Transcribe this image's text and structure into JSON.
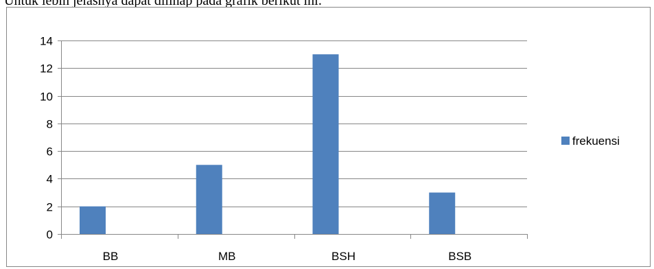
{
  "intro_text": "Untuk lebih jelasnya dapat dilihap pada grafik berikut ini:",
  "chart_data": {
    "type": "bar",
    "categories": [
      "BB",
      "MB",
      "BSH",
      "BSB"
    ],
    "series": [
      {
        "name": "frekuensi",
        "values": [
          2,
          5,
          13,
          3
        ],
        "color": "#4f81bd"
      }
    ],
    "title": "",
    "xlabel": "",
    "ylabel": "",
    "ylim": [
      0,
      14
    ],
    "yticks": [
      "0",
      "2",
      "4",
      "6",
      "8",
      "10",
      "12",
      "14"
    ],
    "grid": true,
    "legend_position": "right"
  }
}
